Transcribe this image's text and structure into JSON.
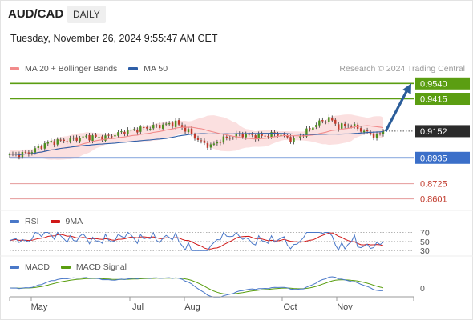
{
  "header": {
    "symbol": "AUD/CAD",
    "period": "DAILY",
    "timestamp": "Tuesday, November 26, 2024 9:55:47 AM CET"
  },
  "credit": "Research © 2024 Trading Central",
  "colors": {
    "up": "#4b8f1f",
    "down": "#c0392b",
    "ma20": "#f28b8b",
    "ma50": "#2f5fa8",
    "band_fill": "#fbe0e0",
    "target_line": "#5b9e12",
    "support_line": "#3b6fc9",
    "weak_line": "#e59a9a",
    "arrow": "#2b5d9a",
    "rsi": "#4a78c8",
    "rsi_ma": "#d01818",
    "macd": "#4a78c8",
    "macd_signal": "#5a9e10"
  },
  "chart_data": [
    {
      "type": "candlestick",
      "legend": [
        {
          "label": "MA 20 + Bollinger Bands",
          "color": "#f28b8b"
        },
        {
          "label": "MA 50",
          "color": "#2f5fa8"
        }
      ],
      "x_labels": [
        "May",
        "Jul",
        "Aug",
        "Oct",
        "Nov"
      ],
      "ylim": [
        0.854,
        0.962
      ],
      "current_price": "0.9152",
      "levels": [
        {
          "label": "0.9540",
          "value": 0.954,
          "style": "target"
        },
        {
          "label": "0.9415",
          "value": 0.9415,
          "style": "target"
        },
        {
          "label": "0.8935",
          "value": 0.8935,
          "style": "support"
        },
        {
          "label": "0.8725",
          "value": 0.8725,
          "style": "weak"
        },
        {
          "label": "0.8601",
          "value": 0.8601,
          "style": "weak"
        }
      ],
      "arrow_to": 0.954
    },
    {
      "type": "line",
      "name": "rsi-panel",
      "legend": [
        {
          "label": "RSI",
          "color": "#4a78c8"
        },
        {
          "label": "9MA",
          "color": "#d01818"
        }
      ],
      "ticks": [
        {
          "label": "70",
          "value": 70
        },
        {
          "label": "50",
          "value": 50
        },
        {
          "label": "30",
          "value": 30
        }
      ],
      "ylim": [
        25,
        78
      ]
    },
    {
      "type": "line",
      "name": "macd-panel",
      "legend": [
        {
          "label": "MACD",
          "color": "#4a78c8"
        },
        {
          "label": "MACD Signal",
          "color": "#5a9e10"
        }
      ],
      "ticks": [
        {
          "label": "0",
          "value": 0
        }
      ]
    }
  ]
}
